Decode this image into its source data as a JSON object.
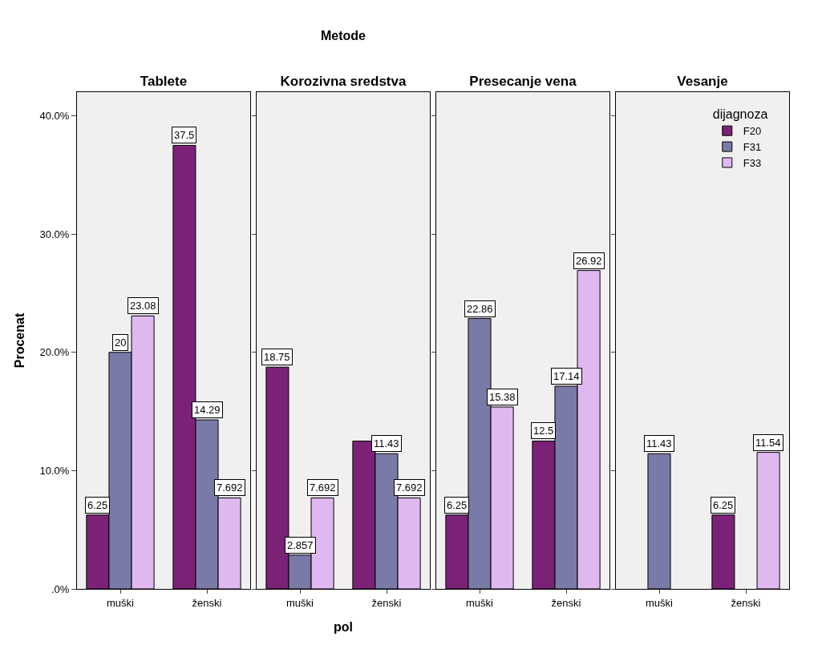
{
  "chart_data": [
    {
      "type": "bar",
      "title": "Tablete",
      "ylabel": "Procenat",
      "categories": [
        "muški",
        "ženski"
      ],
      "ylim": [
        0,
        42
      ],
      "yticks": [
        {
          "value": 0,
          "label": ".0%"
        },
        {
          "value": 10,
          "label": "10.0%"
        },
        {
          "value": 20,
          "label": "20.0%"
        },
        {
          "value": 30,
          "label": "30.0%"
        },
        {
          "value": 40,
          "label": "40.0%"
        }
      ],
      "grid": false,
      "legend": false,
      "series": [
        {
          "color": "#7b2277",
          "values": [
            6.25,
            37.5
          ],
          "value_labels": [
            "6.25",
            "37.5"
          ]
        },
        {
          "color": "#7a7aa8",
          "values": [
            20,
            14.29
          ],
          "value_labels": [
            "20",
            "14.29"
          ]
        },
        {
          "color": "#e0b8f0",
          "values": [
            23.08,
            7.692
          ],
          "value_labels": [
            "23.08",
            "7.692"
          ]
        }
      ]
    },
    {
      "type": "bar",
      "title": "Korozivna sredstva",
      "xlabel": "pol",
      "annotations": [
        "Metode"
      ],
      "categories": [
        "muški",
        "ženski"
      ],
      "ylim": [
        0,
        42
      ],
      "yticks": [
        {
          "value": 0,
          "label": null
        },
        {
          "value": 10,
          "label": null
        },
        {
          "value": 20,
          "label": null
        },
        {
          "value": 30,
          "label": null
        },
        {
          "value": 40,
          "label": null
        }
      ],
      "tick_labels": "x",
      "grid": false,
      "legend": false,
      "series": [
        {
          "color": "#7b2277",
          "values": [
            18.75,
            12.5
          ],
          "value_labels": [
            "18.75",
            null
          ]
        },
        {
          "color": "#7a7aa8",
          "values": [
            2.857,
            11.43
          ],
          "value_labels": [
            "2.857",
            "11.43"
          ]
        },
        {
          "color": "#e0b8f0",
          "values": [
            7.692,
            7.692
          ],
          "value_labels": [
            "7.692",
            "7.692"
          ]
        }
      ]
    },
    {
      "type": "bar",
      "title": "Presecanje vena",
      "categories": [
        "muški",
        "ženski"
      ],
      "ylim": [
        0,
        42
      ],
      "yticks": [
        {
          "value": 0,
          "label": null
        },
        {
          "value": 10,
          "label": null
        },
        {
          "value": 20,
          "label": null
        },
        {
          "value": 30,
          "label": null
        },
        {
          "value": 40,
          "label": null
        }
      ],
      "tick_labels": "x",
      "grid": false,
      "legend": false,
      "series": [
        {
          "color": "#7b2277",
          "values": [
            6.25,
            12.5
          ],
          "value_labels": [
            "6.25",
            "12.5"
          ]
        },
        {
          "color": "#7a7aa8",
          "values": [
            22.86,
            17.14
          ],
          "value_labels": [
            "22.86",
            "17.14"
          ]
        },
        {
          "color": "#e0b8f0",
          "values": [
            15.38,
            26.92
          ],
          "value_labels": [
            "15.38",
            "26.92"
          ]
        }
      ]
    },
    {
      "type": "bar",
      "title": "Vesanje",
      "categories": [
        "muški",
        "ženski"
      ],
      "ylim": [
        0,
        42
      ],
      "yticks": [
        {
          "value": 0,
          "label": null
        },
        {
          "value": 10,
          "label": null
        },
        {
          "value": 20,
          "label": null
        },
        {
          "value": 30,
          "label": null
        },
        {
          "value": 40,
          "label": null
        }
      ],
      "tick_labels": "x",
      "grid": false,
      "legend": "top right",
      "legend_title": "dijagnoza",
      "series": [
        {
          "name": "F20",
          "color": "#7b2277",
          "values": [
            null,
            6.25
          ],
          "value_labels": [
            null,
            "6.25"
          ]
        },
        {
          "name": "F31",
          "color": "#7a7aa8",
          "values": [
            11.43,
            null
          ],
          "value_labels": [
            "11.43",
            null
          ]
        },
        {
          "name": "F33",
          "color": "#e0b8f0",
          "values": [
            null,
            11.54
          ],
          "value_labels": [
            null,
            "11.54"
          ]
        }
      ]
    }
  ]
}
